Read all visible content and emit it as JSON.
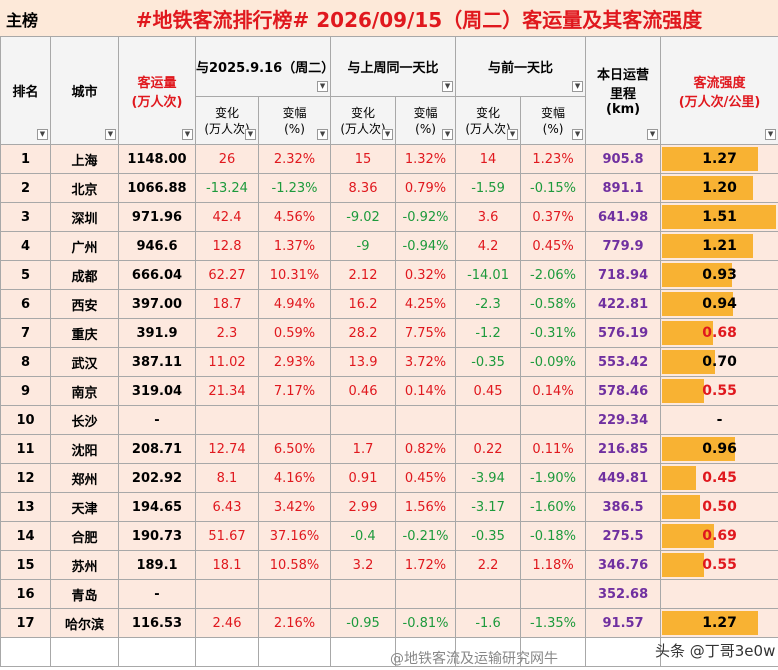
{
  "header": {
    "tag": "主榜",
    "title": "#地铁客流排行榜# 2026/09/15（周二）客运量及其客流强度"
  },
  "table": {
    "columns": {
      "rank": "排名",
      "city": "城市",
      "volume": [
        "客运量",
        "(万人次)"
      ],
      "groups": [
        "与2025.9.16（周二）比",
        "与上周同一天比",
        "与前一天比"
      ],
      "change": [
        "变化",
        "(万人次)"
      ],
      "pct": [
        "变幅",
        "(%)"
      ],
      "mileage": [
        "本日运营",
        "里程",
        "(km)"
      ],
      "intensity": [
        "客流强度",
        "(万人次/公里)"
      ]
    },
    "rows": [
      [
        "1",
        "上海",
        "1148.00",
        "26",
        "2.32%",
        "15",
        "1.32%",
        "14",
        "1.23%",
        "905.8",
        "1.27"
      ],
      [
        "2",
        "北京",
        "1066.88",
        "-13.24",
        "-1.23%",
        "8.36",
        "0.79%",
        "-1.59",
        "-0.15%",
        "891.1",
        "1.20"
      ],
      [
        "3",
        "深圳",
        "971.96",
        "42.4",
        "4.56%",
        "-9.02",
        "-0.92%",
        "3.6",
        "0.37%",
        "641.98",
        "1.51"
      ],
      [
        "4",
        "广州",
        "946.6",
        "12.8",
        "1.37%",
        "-9",
        "-0.94%",
        "4.2",
        "0.45%",
        "779.9",
        "1.21"
      ],
      [
        "5",
        "成都",
        "666.04",
        "62.27",
        "10.31%",
        "2.12",
        "0.32%",
        "-14.01",
        "-2.06%",
        "718.94",
        "0.93"
      ],
      [
        "6",
        "西安",
        "397.00",
        "18.7",
        "4.94%",
        "16.2",
        "4.25%",
        "-2.3",
        "-0.58%",
        "422.81",
        "0.94"
      ],
      [
        "7",
        "重庆",
        "391.9",
        "2.3",
        "0.59%",
        "28.2",
        "7.75%",
        "-1.2",
        "-0.31%",
        "576.19",
        "0.68"
      ],
      [
        "8",
        "武汉",
        "387.11",
        "11.02",
        "2.93%",
        "13.9",
        "3.72%",
        "-0.35",
        "-0.09%",
        "553.42",
        "0.70"
      ],
      [
        "9",
        "南京",
        "319.04",
        "21.34",
        "7.17%",
        "0.46",
        "0.14%",
        "0.45",
        "0.14%",
        "578.46",
        "0.55"
      ],
      [
        "10",
        "长沙",
        "-",
        null,
        null,
        null,
        null,
        null,
        null,
        "229.34",
        "-"
      ],
      [
        "11",
        "沈阳",
        "208.71",
        "12.74",
        "6.50%",
        "1.7",
        "0.82%",
        "0.22",
        "0.11%",
        "216.85",
        "0.96"
      ],
      [
        "12",
        "郑州",
        "202.92",
        "8.1",
        "4.16%",
        "0.91",
        "0.45%",
        "-3.94",
        "-1.90%",
        "449.81",
        "0.45"
      ],
      [
        "13",
        "天津",
        "194.65",
        "6.43",
        "3.42%",
        "2.99",
        "1.56%",
        "-3.17",
        "-1.60%",
        "386.5",
        "0.50"
      ],
      [
        "14",
        "合肥",
        "190.73",
        "51.67",
        "37.16%",
        "-0.4",
        "-0.21%",
        "-0.35",
        "-0.18%",
        "275.5",
        "0.69"
      ],
      [
        "15",
        "苏州",
        "189.1",
        "18.1",
        "10.58%",
        "3.2",
        "1.72%",
        "2.2",
        "1.18%",
        "346.76",
        "0.55"
      ],
      [
        "16",
        "青岛",
        "-",
        null,
        null,
        null,
        null,
        null,
        null,
        "352.68",
        null
      ],
      [
        "17",
        "哈尔滨",
        "116.53",
        "2.46",
        "2.16%",
        "-0.95",
        "-0.81%",
        "-1.6",
        "-1.35%",
        "91.57",
        "1.27"
      ]
    ]
  },
  "watermark": {
    "left": "@地铁客流及运输研究网牛",
    "right": "头条 @丁哥3e0w"
  }
}
